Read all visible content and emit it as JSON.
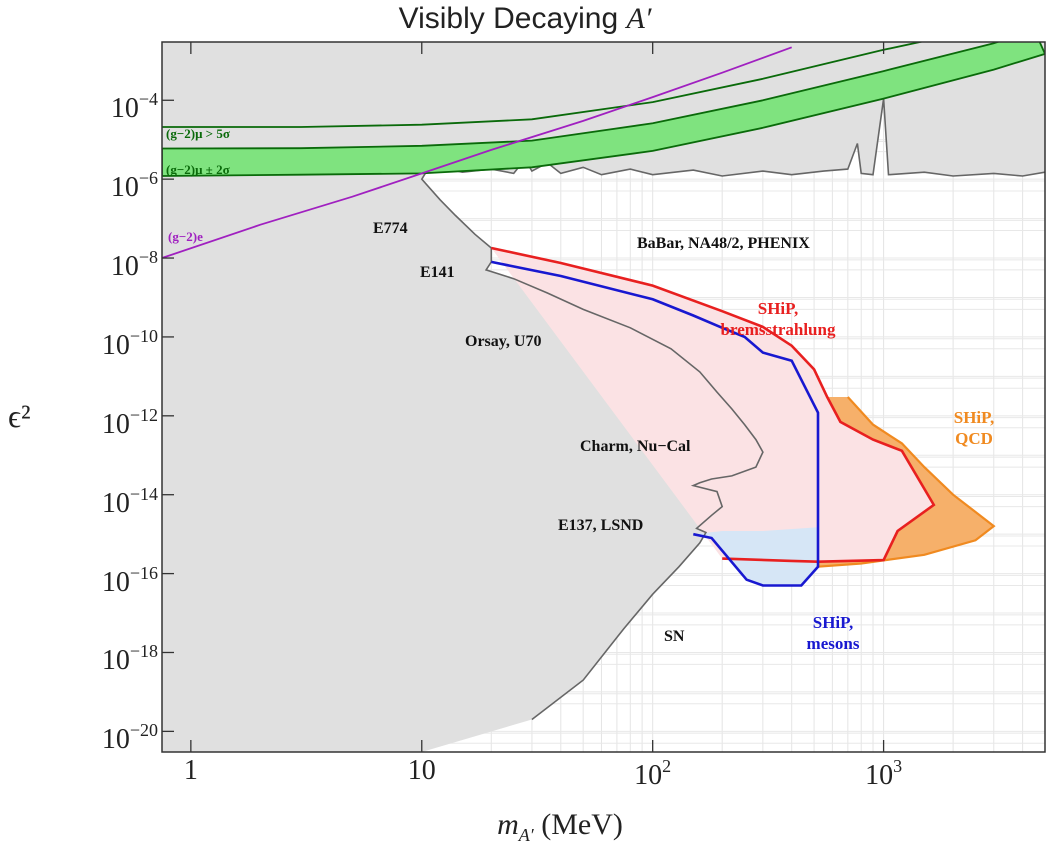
{
  "chart_data": {
    "type": "area",
    "title": "Visibly Decaying A′",
    "title_text": "Visibly Decaying ",
    "title_symbol": "A′",
    "xlabel": "m_A′ (MeV)",
    "xlabel_text": "(MeV)",
    "ylabel": "ϵ²",
    "x_scale": "log",
    "y_scale": "log",
    "xlim": [
      0.75,
      5000
    ],
    "ylim": [
      3e-21,
      0.003
    ],
    "x_ticks": [
      {
        "value": 1,
        "base": "1",
        "exp": ""
      },
      {
        "value": 10,
        "base": "10",
        "exp": ""
      },
      {
        "value": 100,
        "base": "10",
        "exp": "2"
      },
      {
        "value": 1000,
        "base": "10",
        "exp": "3"
      }
    ],
    "y_ticks": [
      {
        "value": 0.0001,
        "base": "10",
        "exp": "−4"
      },
      {
        "value": 1e-06,
        "base": "10",
        "exp": "−6"
      },
      {
        "value": 1e-08,
        "base": "10",
        "exp": "−8"
      },
      {
        "value": 1e-10,
        "base": "10",
        "exp": "−10"
      },
      {
        "value": 1e-12,
        "base": "10",
        "exp": "−12"
      },
      {
        "value": 1e-14,
        "base": "10",
        "exp": "−14"
      },
      {
        "value": 1e-16,
        "base": "10",
        "exp": "−16"
      },
      {
        "value": 1e-18,
        "base": "10",
        "exp": "−18"
      },
      {
        "value": 1e-20,
        "base": "10",
        "exp": "−20"
      }
    ],
    "grid": true,
    "colors": {
      "excluded": "#e0e0e0",
      "excluded_edge": "#666666",
      "gm2_band": "#7fe37f",
      "gm2_edge": "#0a6a0a",
      "ge_line": "#a020c0",
      "ship_brems": "#e82020",
      "ship_brems_fill": "#fbe2e4",
      "ship_qcd": "#f08a20",
      "ship_qcd_fill": "#f6b06a",
      "ship_mesons": "#1818d0",
      "ship_mesons_fill": "#d6e6f6"
    },
    "series": [
      {
        "name": "BaBar, NA48/2, PHENIX",
        "kind": "upper_bound",
        "points": [
          [
            10.5,
            1.6e-06
          ],
          [
            12,
            2e-06
          ],
          [
            15,
            1.5e-06
          ],
          [
            20,
            1.8e-06
          ],
          [
            25,
            1.4e-06
          ],
          [
            28,
            3.2e-06
          ],
          [
            30,
            1.6e-06
          ],
          [
            35,
            2.6e-06
          ],
          [
            40,
            1.4e-06
          ],
          [
            50,
            2e-06
          ],
          [
            60,
            1.3e-06
          ],
          [
            80,
            1.8e-06
          ],
          [
            100,
            1.3e-06
          ],
          [
            150,
            1.7e-06
          ],
          [
            200,
            1.2e-06
          ],
          [
            300,
            1.6e-06
          ],
          [
            400,
            1.3e-06
          ],
          [
            550,
            1.6e-06
          ],
          [
            700,
            1.8e-06
          ],
          [
            770,
            8e-06
          ],
          [
            800,
            1.4e-06
          ],
          [
            900,
            1.3e-06
          ],
          [
            1000,
            0.00011
          ],
          [
            1050,
            1.3e-06
          ],
          [
            1500,
            1.5e-06
          ],
          [
            2000,
            1.2e-06
          ],
          [
            3000,
            1.4e-06
          ],
          [
            4000,
            1.2e-06
          ],
          [
            5000,
            1.5e-06
          ]
        ]
      },
      {
        "name": "E774, E141, Orsay, U70, Charm, Nu−Cal, E137, LSND, SN",
        "kind": "beam_dump_excluded",
        "points": [
          [
            10.5,
            1.6e-06
          ],
          [
            10,
            1e-06
          ],
          [
            12,
            3e-07
          ],
          [
            14,
            1.2e-07
          ],
          [
            17,
            4e-08
          ],
          [
            20,
            1.8e-08
          ],
          [
            20,
            8e-09
          ],
          [
            19,
            5e-09
          ],
          [
            25,
            3e-09
          ],
          [
            35,
            1.3e-09
          ],
          [
            50,
            5e-10
          ],
          [
            80,
            1.7e-10
          ],
          [
            120,
            5e-11
          ],
          [
            160,
            1.3e-11
          ],
          [
            190,
            4e-12
          ],
          [
            220,
            1.5e-12
          ],
          [
            250,
            6e-13
          ],
          [
            280,
            2.5e-13
          ],
          [
            300,
            1.2e-13
          ],
          [
            280,
            5e-14
          ],
          [
            220,
            3e-14
          ],
          [
            180,
            2.5e-14
          ],
          [
            160,
            2e-14
          ],
          [
            150,
            1.7e-14
          ],
          [
            190,
            1.2e-14
          ],
          [
            200,
            5e-15
          ],
          [
            180,
            3e-15
          ],
          [
            155,
            1.4e-15
          ],
          [
            170,
            1.1e-15
          ],
          [
            160,
            6e-16
          ],
          [
            130,
            1.5e-16
          ],
          [
            100,
            3e-17
          ],
          [
            75,
            4e-18
          ],
          [
            50,
            2e-19
          ],
          [
            30,
            2e-20
          ],
          [
            10,
            3e-21
          ],
          [
            0.75,
            3e-21
          ]
        ]
      },
      {
        "name": "(g−2)μ > 5σ",
        "kind": "line",
        "points": [
          [
            0.75,
            2.1e-05
          ],
          [
            3,
            2.1e-05
          ],
          [
            10,
            2.4e-05
          ],
          [
            30,
            3.3e-05
          ],
          [
            100,
            9e-05
          ],
          [
            300,
            0.00035
          ],
          [
            1000,
            0.0019
          ],
          [
            2500,
            0.006
          ]
        ]
      },
      {
        "name": "(g−2)μ ± 2σ",
        "kind": "band",
        "upper": [
          [
            0.75,
            6e-06
          ],
          [
            3,
            6.1e-06
          ],
          [
            10,
            7e-06
          ],
          [
            30,
            9.5e-06
          ],
          [
            100,
            2.6e-05
          ],
          [
            300,
            0.0001
          ],
          [
            1000,
            0.00055
          ],
          [
            3000,
            0.0028
          ],
          [
            4500,
            0.006
          ]
        ],
        "lower": [
          [
            0.75,
            1.2e-06
          ],
          [
            3,
            1.3e-06
          ],
          [
            10,
            1.4e-06
          ],
          [
            30,
            2e-06
          ],
          [
            100,
            5.2e-06
          ],
          [
            300,
            2e-05
          ],
          [
            1000,
            0.00011
          ],
          [
            3000,
            0.0006
          ],
          [
            5000,
            0.0015
          ]
        ]
      },
      {
        "name": "(g−2)e",
        "kind": "line",
        "points": [
          [
            0.75,
            1e-08
          ],
          [
            2,
            7e-08
          ],
          [
            5,
            3.6e-07
          ],
          [
            10,
            1.4e-06
          ],
          [
            20,
            5.5e-06
          ],
          [
            50,
            3e-05
          ],
          [
            100,
            0.00012
          ],
          [
            200,
            0.0005
          ],
          [
            400,
            0.0022
          ]
        ]
      },
      {
        "name": "SHiP, bremsstrahlung",
        "kind": "region",
        "upper": [
          [
            20,
            1.8e-08
          ],
          [
            40,
            7.5e-09
          ],
          [
            100,
            2e-09
          ],
          [
            200,
            4.5e-10
          ],
          [
            300,
            1.8e-10
          ],
          [
            400,
            6e-11
          ],
          [
            500,
            1.5e-11
          ],
          [
            570,
            3e-12
          ],
          [
            650,
            7e-13
          ],
          [
            900,
            2.5e-13
          ],
          [
            1200,
            1.3e-13
          ],
          [
            1650,
            5.5e-15
          ],
          [
            1150,
            1.2e-15
          ],
          [
            1000,
            2.2e-16
          ],
          [
            520,
            2e-16
          ],
          [
            400,
            2.1e-16
          ],
          [
            200,
            2.4e-16
          ]
        ],
        "lower": [
          [
            20,
            1.8e-08
          ],
          [
            20,
            8e-09
          ],
          [
            200,
            2.4e-16
          ]
        ]
      },
      {
        "name": "SHiP, QCD",
        "kind": "region",
        "points": [
          [
            520,
            1.5e-16
          ],
          [
            520,
            2e-16
          ],
          [
            1000,
            2.2e-16
          ],
          [
            1150,
            1.2e-15
          ],
          [
            1650,
            5.5e-15
          ],
          [
            1200,
            1.3e-13
          ],
          [
            900,
            2.5e-13
          ],
          [
            650,
            7e-13
          ],
          [
            570,
            3e-12
          ],
          [
            700,
            3e-12
          ],
          [
            900,
            6e-13
          ],
          [
            1200,
            2e-13
          ],
          [
            1500,
            5e-14
          ],
          [
            2000,
            1e-14
          ],
          [
            3000,
            1.6e-15
          ],
          [
            2500,
            7e-16
          ],
          [
            1500,
            3e-16
          ],
          [
            800,
            1.8e-16
          ],
          [
            520,
            1.5e-16
          ]
        ]
      },
      {
        "name": "SHiP, mesons",
        "kind": "region",
        "upper": [
          [
            20,
            8e-09
          ],
          [
            40,
            3.5e-09
          ],
          [
            100,
            9e-10
          ],
          [
            150,
            3.5e-10
          ],
          [
            200,
            1.7e-10
          ],
          [
            250,
            1e-10
          ],
          [
            300,
            4e-11
          ],
          [
            400,
            2.5e-11
          ],
          [
            520,
            1.2e-12
          ],
          [
            520,
            1.5e-16
          ],
          [
            440,
            5e-17
          ],
          [
            300,
            5e-17
          ],
          [
            255,
            7e-17
          ],
          [
            180,
            8e-16
          ],
          [
            150,
            1e-15
          ]
        ],
        "lower": [
          [
            150,
            1e-15
          ],
          [
            200,
            1.2e-15
          ],
          [
            300,
            1.2e-15
          ],
          [
            520,
            1.5e-15
          ]
        ]
      }
    ],
    "annotations": [
      {
        "text": "BaBar, NA48/2, PHENIX",
        "color": "#111111"
      },
      {
        "text": "E774",
        "color": "#111111"
      },
      {
        "text": "E141",
        "color": "#111111"
      },
      {
        "text": "Orsay, U70",
        "color": "#111111"
      },
      {
        "text": "Charm, Nu−Cal",
        "color": "#111111"
      },
      {
        "text": "E137, LSND",
        "color": "#111111"
      },
      {
        "text": "SN",
        "color": "#111111"
      },
      {
        "text": "SHiP,",
        "text2": "bremsstrahlung",
        "color": "#e82020"
      },
      {
        "text": "SHiP,",
        "text2": "QCD",
        "color": "#f08a20"
      },
      {
        "text": "SHiP,",
        "text2": "mesons",
        "color": "#1818d0"
      },
      {
        "text": "(g−2)μ > 5σ",
        "color": "#0a6a0a"
      },
      {
        "text": "(g−2)μ ± 2σ",
        "color": "#0a6a0a"
      },
      {
        "text": "(g−2)e",
        "color": "#a020c0"
      }
    ]
  }
}
